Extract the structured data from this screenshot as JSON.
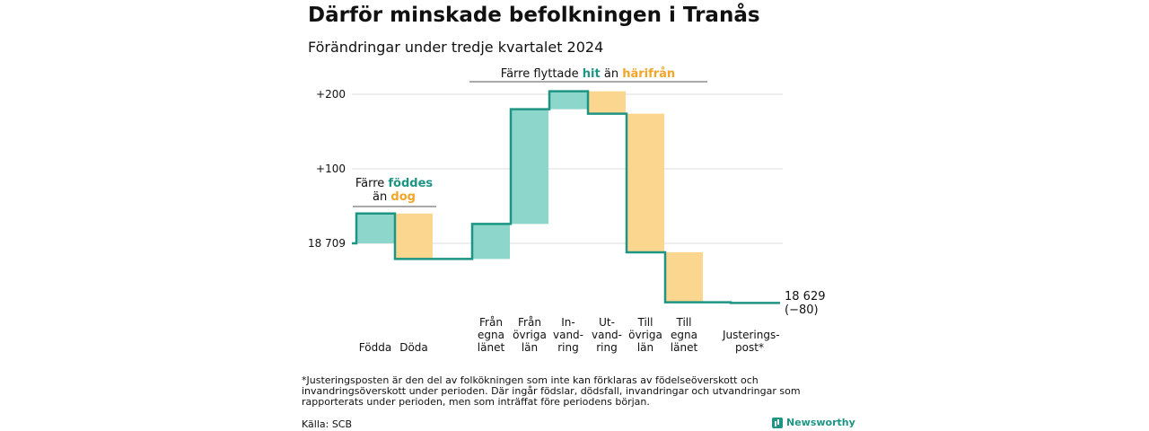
{
  "header": {
    "title": "Därför minskade befolkningen i Tranås",
    "subtitle": "Förändringar under tredje kvartalet 2024"
  },
  "annotations": {
    "births": {
      "line1_prefix": "Färre ",
      "line1_highlight": "föddes",
      "line2_prefix": "än ",
      "line2_highlight": "dog"
    },
    "migration": {
      "prefix": "Färre flyttade ",
      "highlight1": "hit",
      "middle": " än ",
      "highlight2": "härifrån"
    }
  },
  "chart_data": {
    "type": "waterfall",
    "start": {
      "label": "18 709",
      "value": 18709
    },
    "end": {
      "label": "18 629",
      "change_label": "(−80)",
      "value": 18629
    },
    "y_ticks": [
      {
        "label": "+200",
        "offset": 200
      },
      {
        "label": "+100",
        "offset": 100
      },
      {
        "label": "18 709",
        "offset": 0
      }
    ],
    "ylim": [
      -80,
      210
    ],
    "steps": [
      {
        "category": "Födda",
        "lines": [
          "Födda"
        ],
        "change": 40,
        "kind": "in"
      },
      {
        "category": "Döda",
        "lines": [
          "Döda"
        ],
        "change": -61,
        "kind": "out"
      },
      {
        "category": "Från egna länet",
        "lines": [
          "Från",
          "egna",
          "länet"
        ],
        "change": 47,
        "kind": "in"
      },
      {
        "category": "Från övriga län",
        "lines": [
          "Från",
          "övriga",
          "län"
        ],
        "change": 154,
        "kind": "in"
      },
      {
        "category": "Invandring",
        "lines": [
          "In-",
          "vand-",
          "ring"
        ],
        "change": 24,
        "kind": "in"
      },
      {
        "category": "Utvandring",
        "lines": [
          "Ut-",
          "vand-",
          "ring"
        ],
        "change": -30,
        "kind": "out"
      },
      {
        "category": "Till övriga län",
        "lines": [
          "Till",
          "övriga",
          "län"
        ],
        "change": -186,
        "kind": "out"
      },
      {
        "category": "Till egna länet",
        "lines": [
          "Till",
          "egna",
          "länet"
        ],
        "change": -67,
        "kind": "out"
      },
      {
        "category": "Justeringspost*",
        "lines": [
          "Justerings-",
          "post*"
        ],
        "change": -1,
        "kind": "adj"
      }
    ],
    "colors": {
      "in": "#8dd6cc",
      "out": "#fbd68e",
      "line": "#1e9584",
      "grid": "#dddddd"
    }
  },
  "footer": {
    "footnote": "*Justeringsposten är den del av folkökningen som inte kan förklaras av födelseöverskott och invandringsöverskott under perioden. Där ingår födslar, dödsfall, invandringar och utvandringar som rapporterats under perioden, men som inträffat före periodens början.",
    "source": "Källa: SCB",
    "brand": "Newsworthy"
  }
}
